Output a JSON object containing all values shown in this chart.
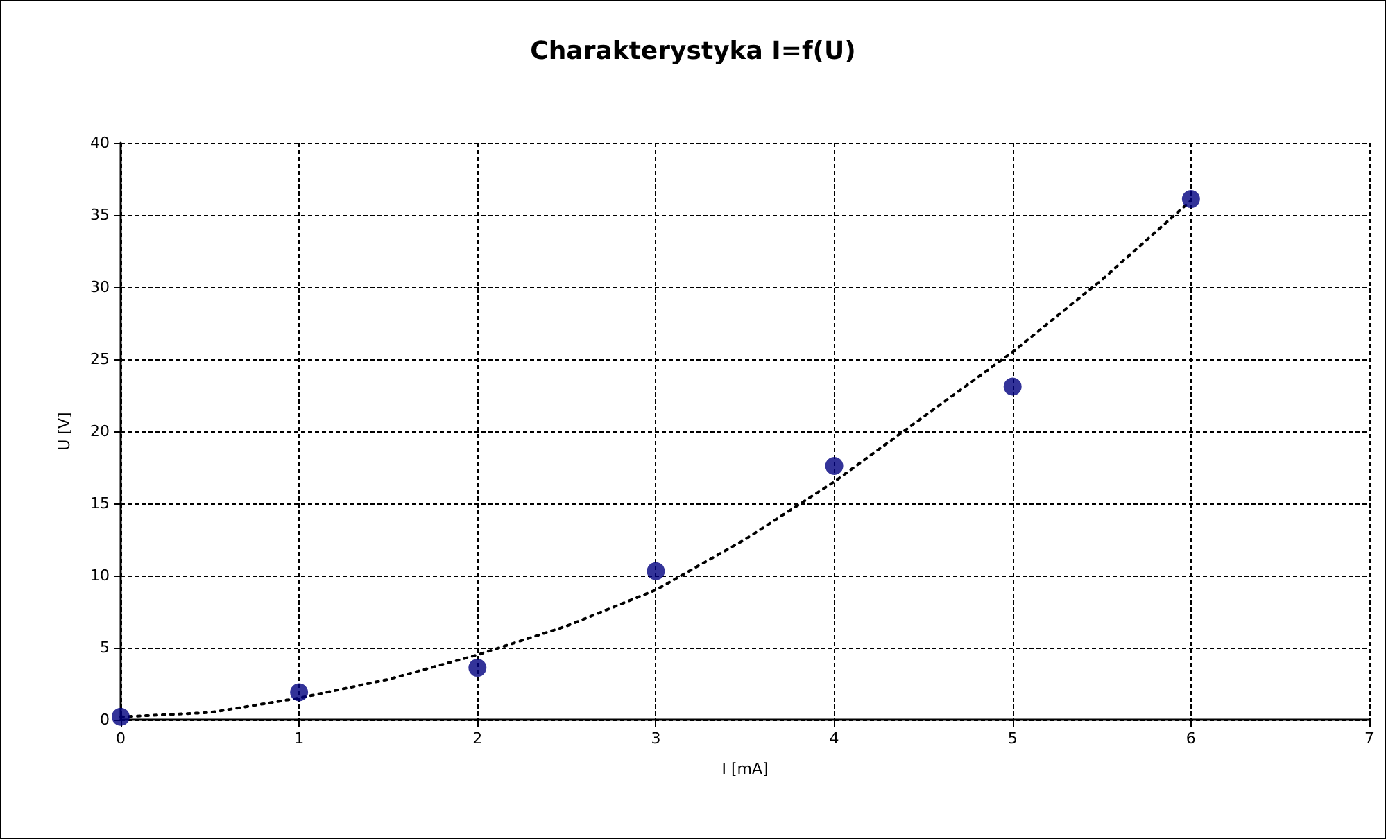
{
  "chart_data": {
    "type": "scatter",
    "title": "Charakterystyka I=f(U)",
    "xlabel": "I [mA]",
    "ylabel": "U [V]",
    "xlim": [
      0,
      7
    ],
    "xticks": [
      0,
      1,
      2,
      3,
      4,
      5,
      6,
      7
    ],
    "ylim": [
      0,
      40
    ],
    "yticks": [
      0,
      5,
      10,
      15,
      20,
      25,
      30,
      35,
      40
    ],
    "grid": true,
    "marker": "circle",
    "series": [
      {
        "color": "#000080",
        "x": [
          0,
          1,
          2,
          3,
          4,
          5,
          6
        ],
        "values": [
          0.2,
          1.9,
          3.6,
          10.3,
          17.6,
          23.1,
          36.1
        ]
      },
      {
        "type": "line",
        "color": "#000000",
        "line_style": "dotted",
        "marker": "none",
        "x": [
          0,
          0.5,
          1,
          1.5,
          2,
          2.5,
          3,
          3.5,
          4,
          4.5,
          5,
          5.5,
          6
        ],
        "values": [
          0.2,
          0.5,
          1.5,
          2.8,
          4.5,
          6.5,
          9,
          12.5,
          16.5,
          21,
          25.5,
          30.5,
          36
        ]
      }
    ]
  }
}
